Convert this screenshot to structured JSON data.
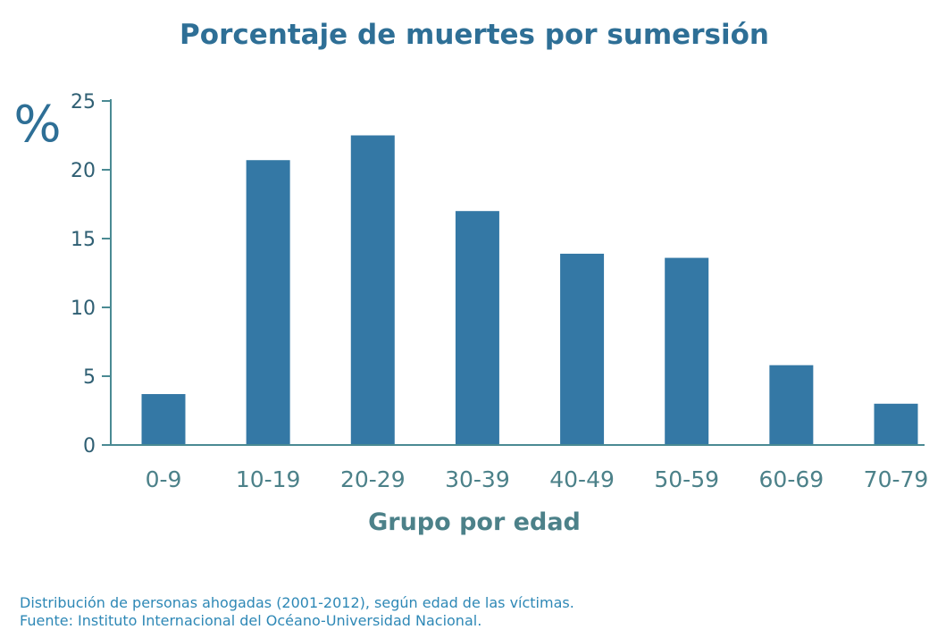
{
  "chart_data": {
    "type": "bar",
    "title": "Porcentaje de muertes por sumersión",
    "ylabel": "%",
    "xlabel": "Grupo por edad",
    "categories": [
      "0-9",
      "10-19",
      "20-29",
      "30-39",
      "40-49",
      "50-59",
      "60-69",
      "70-79"
    ],
    "values": [
      3.7,
      20.7,
      22.5,
      17.0,
      13.9,
      13.6,
      5.8,
      3.0
    ],
    "ylim": [
      0,
      25
    ],
    "yticks": [
      "0",
      "5",
      "10",
      "15",
      "20",
      "25"
    ],
    "grid": false,
    "bar_color": "#3478a5"
  },
  "footnote": {
    "line1": "Distribución de personas ahogadas (2001-2012), según edad de las víctimas.",
    "line2": "Fuente: Instituto Internacional del Océano-Universidad Nacional."
  },
  "colors": {
    "title": "#2e6f96",
    "axis": "#4a8a93",
    "tick_text": "#2f5f73",
    "category_text": "#4c8189",
    "footnote": "#2e88b6"
  }
}
